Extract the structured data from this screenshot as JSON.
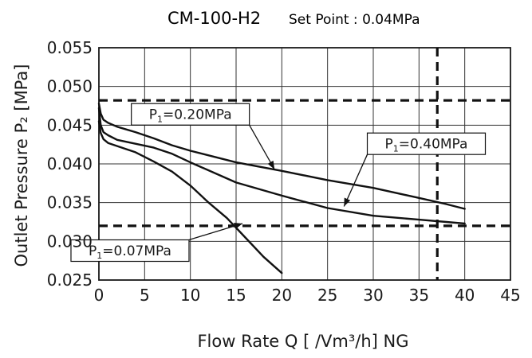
{
  "chart_data": {
    "type": "line",
    "title": "CM-100-H2",
    "subtitle": "Set Point : 0.04MPa",
    "xlabel": "Flow Rate  Q  [ /Vm³/h] NG",
    "ylabel": "Outlet  Pressure  P₂ [MPa]",
    "xlim": [
      0,
      45
    ],
    "ylim": [
      0.025,
      0.055
    ],
    "x_ticks": [
      "0",
      "5",
      "10",
      "15",
      "20",
      "25",
      "30",
      "35",
      "40",
      "45"
    ],
    "y_ticks": [
      "0.025",
      "0.030",
      "0.035",
      "0.040",
      "0.045",
      "0.050",
      "0.055"
    ],
    "grid": true,
    "series": [
      {
        "name": "P₁=0.20MPa",
        "x": [
          0,
          0.2,
          0.5,
          1,
          2,
          4,
          6,
          8,
          10,
          15,
          20,
          25,
          30,
          35,
          38,
          40
        ],
        "y": [
          0.0478,
          0.0465,
          0.0457,
          0.0453,
          0.0448,
          0.0441,
          0.0433,
          0.0424,
          0.0417,
          0.0402,
          0.0391,
          0.0379,
          0.0369,
          0.0356,
          0.0348,
          0.0342
        ]
      },
      {
        "name": "P₁=0.40MPa",
        "x": [
          0,
          0.2,
          0.5,
          1,
          2,
          4,
          6,
          8,
          10,
          15,
          20,
          25,
          30,
          35,
          38,
          40
        ],
        "y": [
          0.0472,
          0.045,
          0.0441,
          0.0437,
          0.0431,
          0.0426,
          0.0421,
          0.0413,
          0.0402,
          0.0376,
          0.0359,
          0.0343,
          0.0333,
          0.0328,
          0.0325,
          0.0323
        ]
      },
      {
        "name": "P₁=0.07MPa",
        "x": [
          0,
          0.2,
          0.5,
          1,
          2,
          4,
          6,
          8,
          10,
          12,
          14,
          16,
          18,
          20
        ],
        "y": [
          0.0455,
          0.044,
          0.0432,
          0.0427,
          0.0423,
          0.0415,
          0.0403,
          0.039,
          0.0372,
          0.035,
          0.033,
          0.0305,
          0.028,
          0.0259
        ]
      }
    ],
    "reference_lines": {
      "horizontal": [
        0.0482,
        0.032
      ],
      "vertical": [
        37
      ]
    },
    "annotations": [
      {
        "series": "P₁=0.20MPa",
        "prefix": "P",
        "sub": "1",
        "value": "=0.20MPa",
        "at": [
          10,
          0.0464
        ],
        "arrow_to": [
          19.2,
          0.0393
        ]
      },
      {
        "series": "P₁=0.40MPa",
        "prefix": "P",
        "sub": "1",
        "value": "=0.40MPa",
        "at": [
          35.8,
          0.0426
        ],
        "arrow_to": [
          26.8,
          0.0345
        ]
      },
      {
        "series": "P₁=0.07MPa",
        "prefix": "P",
        "sub": "1",
        "value": "=0.07MPa",
        "at": [
          3.4,
          0.0288
        ],
        "arrow_to": [
          15.7,
          0.0323
        ]
      }
    ]
  }
}
